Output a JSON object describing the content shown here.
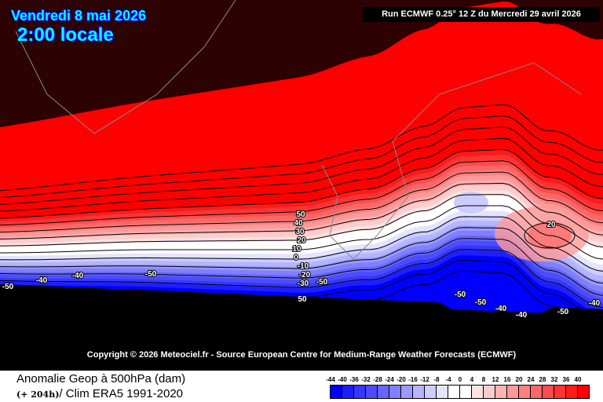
{
  "header": {
    "date": "Vendredi 8 mai 2026",
    "time": "2:00 locale",
    "run": "Run ECMWF 0.25° 12 Z du Mercredi 29 avril 2026"
  },
  "copyright": "Copyright © 2026 Meteociel.fr - Source European Centre for Medium-Range Weather Forecasts (ECMWF)",
  "footer": {
    "title": "Anomalie Geop à 500hPa (dam)",
    "lead": "(+ 204h)",
    "clim": "/ Clim ERA5 1991-2020"
  },
  "colorbar": {
    "ticks": [
      "-44",
      "-40",
      "-36",
      "-32",
      "-28",
      "-24",
      "-20",
      "-16",
      "-12",
      "-8",
      "-4",
      "0",
      "4",
      "8",
      "12",
      "16",
      "20",
      "24",
      "28",
      "32",
      "36",
      "40"
    ],
    "colors": [
      "#0000ff",
      "#1e1eff",
      "#3636ff",
      "#4c4cff",
      "#6666ff",
      "#8080ff",
      "#9a9aff",
      "#b4b4ff",
      "#cdcdff",
      "#e4e4ff",
      "#ffffff",
      "#ffffff",
      "#ffe2e2",
      "#ffcccc",
      "#ffb2b2",
      "#ff9999",
      "#ff8080",
      "#ff6666",
      "#ff4c4c",
      "#ff3333",
      "#ff1a1a",
      "#ff0000"
    ]
  },
  "contour_labels": [
    "50",
    "40",
    "30",
    "20",
    "10",
    "0",
    "-10",
    "-20",
    "-30",
    "-50",
    "50",
    "20",
    "-40",
    "-40",
    "-50",
    "-50",
    "-50",
    "-50",
    "-40",
    "-40",
    "-50",
    "-40"
  ]
}
